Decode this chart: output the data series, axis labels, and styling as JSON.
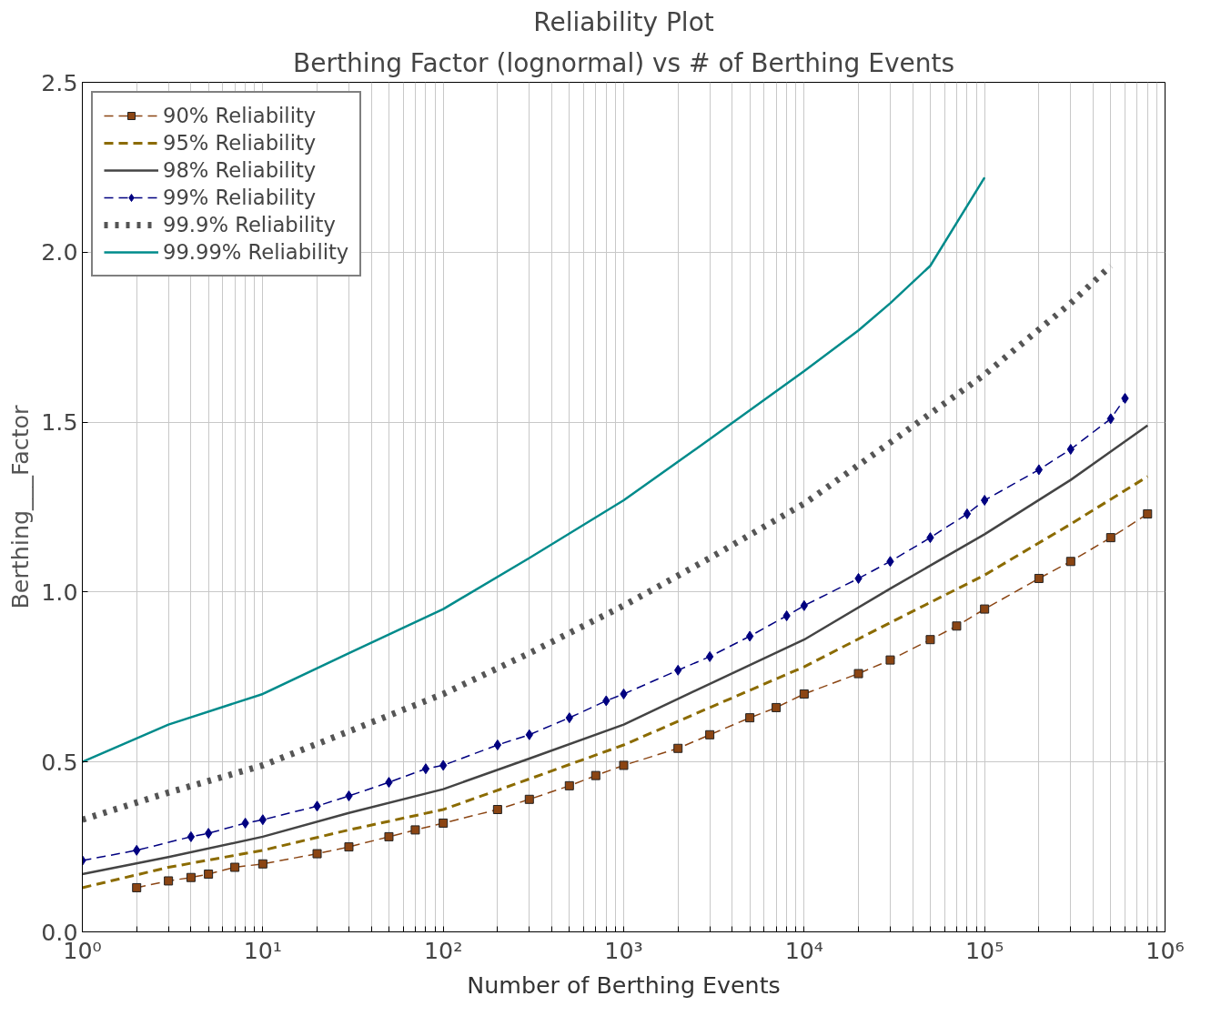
{
  "chart_data": {
    "type": "line",
    "title": "Reliability Plot",
    "subtitle": "Berthing Factor (lognormal) vs # of Berthing Events",
    "xlabel": "Number of Berthing Events",
    "ylabel": "Berthing___Factor",
    "log": "x",
    "grid": true,
    "legend": "top left",
    "xlim": [
      1,
      1000000
    ],
    "ylim": [
      0,
      2.5
    ],
    "xticks": [
      {
        "value": 1,
        "label": "10⁰"
      },
      {
        "value": 2,
        "label": null
      },
      {
        "value": 3,
        "label": null
      },
      {
        "value": 4,
        "label": null
      },
      {
        "value": 5,
        "label": null
      },
      {
        "value": 6,
        "label": null
      },
      {
        "value": 7,
        "label": null
      },
      {
        "value": 8,
        "label": null
      },
      {
        "value": 9,
        "label": null
      },
      {
        "value": 10,
        "label": "10¹"
      },
      {
        "value": 20,
        "label": null
      },
      {
        "value": 30,
        "label": null
      },
      {
        "value": 40,
        "label": null
      },
      {
        "value": 50,
        "label": null
      },
      {
        "value": 60,
        "label": null
      },
      {
        "value": 70,
        "label": null
      },
      {
        "value": 80,
        "label": null
      },
      {
        "value": 90,
        "label": null
      },
      {
        "value": 100,
        "label": "10²"
      },
      {
        "value": 200,
        "label": null
      },
      {
        "value": 300,
        "label": null
      },
      {
        "value": 400,
        "label": null
      },
      {
        "value": 500,
        "label": null
      },
      {
        "value": 600,
        "label": null
      },
      {
        "value": 700,
        "label": null
      },
      {
        "value": 800,
        "label": null
      },
      {
        "value": 900,
        "label": null
      },
      {
        "value": 1000,
        "label": "10³"
      },
      {
        "value": 2000,
        "label": null
      },
      {
        "value": 3000,
        "label": null
      },
      {
        "value": 4000,
        "label": null
      },
      {
        "value": 5000,
        "label": null
      },
      {
        "value": 6000,
        "label": null
      },
      {
        "value": 7000,
        "label": null
      },
      {
        "value": 8000,
        "label": null
      },
      {
        "value": 9000,
        "label": null
      },
      {
        "value": 10000,
        "label": "10⁴"
      },
      {
        "value": 20000,
        "label": null
      },
      {
        "value": 30000,
        "label": null
      },
      {
        "value": 40000,
        "label": null
      },
      {
        "value": 50000,
        "label": null
      },
      {
        "value": 60000,
        "label": null
      },
      {
        "value": 70000,
        "label": null
      },
      {
        "value": 80000,
        "label": null
      },
      {
        "value": 90000,
        "label": null
      },
      {
        "value": 100000,
        "label": "10⁵"
      },
      {
        "value": 200000,
        "label": null
      },
      {
        "value": 300000,
        "label": null
      },
      {
        "value": 400000,
        "label": null
      },
      {
        "value": 500000,
        "label": null
      },
      {
        "value": 600000,
        "label": null
      },
      {
        "value": 700000,
        "label": null
      },
      {
        "value": 800000,
        "label": null
      },
      {
        "value": 900000,
        "label": null
      },
      {
        "value": 1000000,
        "label": "10⁶"
      }
    ],
    "yticks": [
      {
        "value": 0,
        "label": "0.0"
      },
      {
        "value": 0.5,
        "label": "0.5"
      },
      {
        "value": 1,
        "label": "1.0"
      },
      {
        "value": 1.5,
        "label": "1.5"
      },
      {
        "value": 2,
        "label": "2.0"
      },
      {
        "value": 2.5,
        "label": "2.5"
      }
    ],
    "series": [
      {
        "name": "90% Reliability",
        "color": "#8b4513",
        "marker": "square",
        "line_style": "dashed",
        "x": [
          2,
          3,
          4,
          5,
          7,
          10,
          20,
          30,
          50,
          70,
          100,
          200,
          300,
          500,
          700,
          1000,
          2000,
          3000,
          5000,
          7000,
          10000,
          20000,
          30000,
          50000,
          70000,
          100000,
          200000,
          300000,
          500000,
          800000
        ],
        "values": [
          0.13,
          0.15,
          0.16,
          0.17,
          0.19,
          0.2,
          0.23,
          0.25,
          0.28,
          0.3,
          0.32,
          0.36,
          0.39,
          0.43,
          0.46,
          0.49,
          0.54,
          0.58,
          0.63,
          0.66,
          0.7,
          0.76,
          0.8,
          0.86,
          0.9,
          0.95,
          1.04,
          1.09,
          1.16,
          1.23
        ]
      },
      {
        "name": "95% Reliability",
        "color": "#8b6b00",
        "marker": "none",
        "line_style": "dashed",
        "x": [
          1,
          3,
          10,
          30,
          100,
          300,
          1000,
          3000,
          10000,
          30000,
          100000,
          300000,
          800000
        ],
        "values": [
          0.13,
          0.19,
          0.24,
          0.3,
          0.36,
          0.45,
          0.55,
          0.66,
          0.78,
          0.91,
          1.05,
          1.2,
          1.34
        ]
      },
      {
        "name": "98% Reliability",
        "color": "#444444",
        "marker": "none",
        "line_style": "solid",
        "x": [
          1,
          3,
          10,
          30,
          100,
          300,
          1000,
          3000,
          10000,
          30000,
          100000,
          300000,
          800000
        ],
        "values": [
          0.17,
          0.22,
          0.28,
          0.35,
          0.42,
          0.51,
          0.61,
          0.73,
          0.86,
          1.01,
          1.17,
          1.33,
          1.49
        ]
      },
      {
        "name": "99% Reliability",
        "color": "#000080",
        "marker": "diamond",
        "line_style": "dashed",
        "x": [
          1,
          2,
          4,
          5,
          8,
          10,
          20,
          30,
          50,
          80,
          100,
          200,
          300,
          500,
          800,
          1000,
          2000,
          3000,
          5000,
          8000,
          10000,
          20000,
          30000,
          50000,
          80000,
          100000,
          200000,
          300000,
          500000,
          600000
        ],
        "values": [
          0.21,
          0.24,
          0.28,
          0.29,
          0.32,
          0.33,
          0.37,
          0.4,
          0.44,
          0.48,
          0.49,
          0.55,
          0.58,
          0.63,
          0.68,
          0.7,
          0.77,
          0.81,
          0.87,
          0.93,
          0.96,
          1.04,
          1.09,
          1.16,
          1.23,
          1.27,
          1.36,
          1.42,
          1.51,
          1.57
        ]
      },
      {
        "name": "99.9% Reliability",
        "color": "#555555",
        "marker": "none",
        "line_style": "dotted",
        "x": [
          1,
          3,
          10,
          30,
          100,
          300,
          1000,
          3000,
          10000,
          30000,
          100000,
          300000,
          500000
        ],
        "values": [
          0.33,
          0.41,
          0.49,
          0.59,
          0.7,
          0.82,
          0.96,
          1.1,
          1.26,
          1.44,
          1.64,
          1.85,
          1.96
        ]
      },
      {
        "name": "99.99% Reliability",
        "color": "#008b8b",
        "marker": "none",
        "line_style": "solid",
        "x": [
          1,
          3,
          10,
          30,
          100,
          300,
          1000,
          3000,
          10000,
          20000,
          30000,
          50000,
          100000
        ],
        "values": [
          0.5,
          0.61,
          0.7,
          0.82,
          0.95,
          1.1,
          1.27,
          1.45,
          1.65,
          1.77,
          1.85,
          1.96,
          2.22
        ]
      }
    ]
  }
}
